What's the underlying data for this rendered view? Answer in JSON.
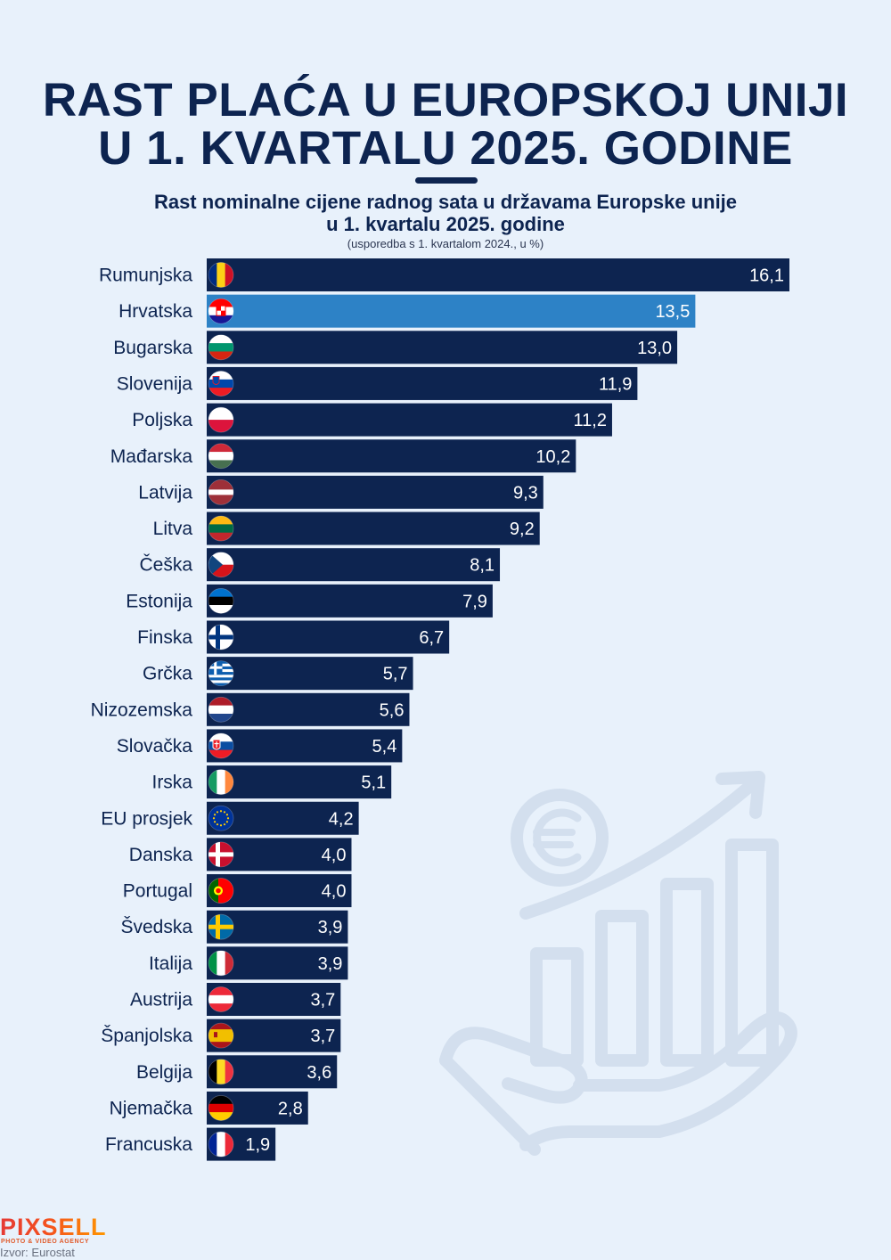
{
  "title_line1": "RAST PLAĆA U EUROPSKOJ UNIJI",
  "title_line2": "U 1. KVARTALU 2025. GODINE",
  "subtitle_line1": "Rast nominalne cijene radnog sata u državama Europske unije",
  "subtitle_line2": "u 1. kvartalu 2025. godine",
  "note": "(usporedba s 1. kvartalom 2024., u %)",
  "logo": "PIXSELL",
  "logo_tagline": "PHOTO & VIDEO AGENCY",
  "source": "Izvor: Eurostat",
  "colors": {
    "bar": "#0d2450",
    "highlight_bar": "#2d82c6",
    "title": "#0d2450",
    "background": "#e8f1fb"
  },
  "chart_data": {
    "type": "bar",
    "orientation": "horizontal",
    "highlight": "Hrvatska",
    "categories": [
      "Rumunjska",
      "Hrvatska",
      "Bugarska",
      "Slovenija",
      "Poljska",
      "Mađarska",
      "Latvija",
      "Litva",
      "Češka",
      "Estonija",
      "Finska",
      "Grčka",
      "Nizozemska",
      "Slovačka",
      "Irska",
      "EU prosjek",
      "Danska",
      "Portugal",
      "Švedska",
      "Italija",
      "Austrija",
      "Španjolska",
      "Belgija",
      "Njemačka",
      "Francuska"
    ],
    "values": [
      16.1,
      13.5,
      13.0,
      11.9,
      11.2,
      10.2,
      9.3,
      9.2,
      8.1,
      7.9,
      6.7,
      5.7,
      5.6,
      5.4,
      5.1,
      4.2,
      4.0,
      4.0,
      3.9,
      3.9,
      3.7,
      3.7,
      3.6,
      2.8,
      1.9
    ],
    "value_labels": [
      "16,1",
      "13,5",
      "13,0",
      "11,9",
      "11,2",
      "10,2",
      "9,3",
      "9,2",
      "8,1",
      "7,9",
      "6,7",
      "5,7",
      "5,6",
      "5,4",
      "5,1",
      "4,2",
      "4,0",
      "4,0",
      "3,9",
      "3,9",
      "3,7",
      "3,7",
      "3,6",
      "2,8",
      "1,9"
    ],
    "flag_icons": [
      "romania-flag-icon",
      "croatia-flag-icon",
      "bulgaria-flag-icon",
      "slovenia-flag-icon",
      "poland-flag-icon",
      "hungary-flag-icon",
      "latvia-flag-icon",
      "lithuania-flag-icon",
      "czechia-flag-icon",
      "estonia-flag-icon",
      "finland-flag-icon",
      "greece-flag-icon",
      "netherlands-flag-icon",
      "slovakia-flag-icon",
      "ireland-flag-icon",
      "eu-flag-icon",
      "denmark-flag-icon",
      "portugal-flag-icon",
      "sweden-flag-icon",
      "italy-flag-icon",
      "austria-flag-icon",
      "spain-flag-icon",
      "belgium-flag-icon",
      "germany-flag-icon",
      "france-flag-icon"
    ],
    "xlim": [
      0,
      16.1
    ],
    "grid": false,
    "legend": "none"
  }
}
